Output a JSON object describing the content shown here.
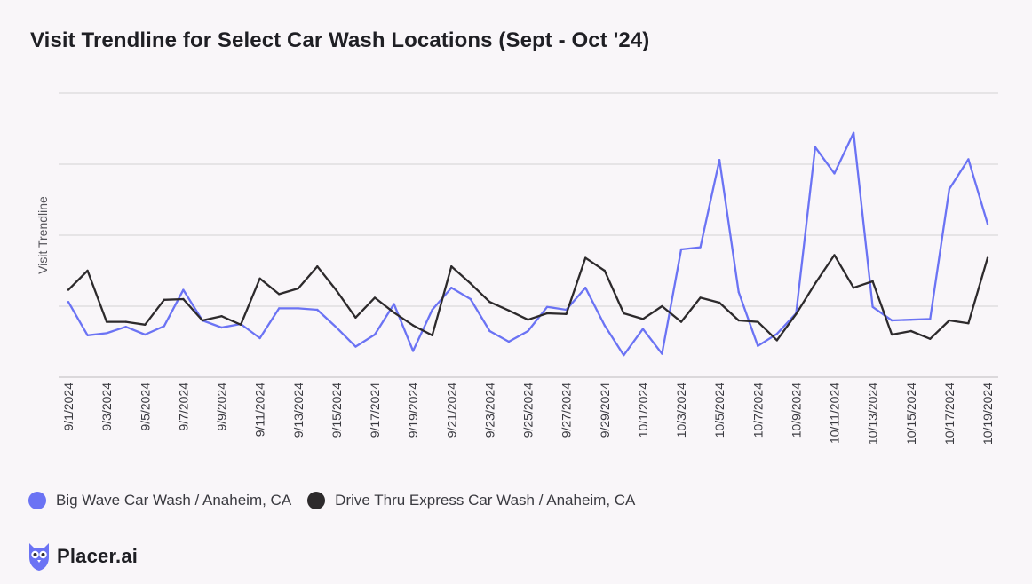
{
  "colors": {
    "background": "#f9f6f9",
    "big_wave": "#6b73f4",
    "drive_thru": "#2d2a2c",
    "grid": "#d4d2d4",
    "brand": "#6b73f4"
  },
  "brand": {
    "name": "Placer.ai",
    "icon": "owl-logo-icon"
  },
  "chart_data": {
    "type": "line",
    "title": "Visit Trendline for Select Car Wash Locations (Sept - Oct '24)",
    "ylabel": "Visit Trendline",
    "xlabel": "",
    "ylim": [
      0,
      4
    ],
    "yticks_labeled": false,
    "grid": true,
    "legend_position": "bottom-left",
    "x": [
      "9/1/2024",
      "9/2/2024",
      "9/3/2024",
      "9/4/2024",
      "9/5/2024",
      "9/6/2024",
      "9/7/2024",
      "9/8/2024",
      "9/9/2024",
      "9/10/2024",
      "9/11/2024",
      "9/12/2024",
      "9/13/2024",
      "9/14/2024",
      "9/15/2024",
      "9/16/2024",
      "9/17/2024",
      "9/18/2024",
      "9/19/2024",
      "9/20/2024",
      "9/21/2024",
      "9/22/2024",
      "9/23/2024",
      "9/24/2024",
      "9/25/2024",
      "9/26/2024",
      "9/27/2024",
      "9/28/2024",
      "9/29/2024",
      "9/30/2024",
      "10/1/2024",
      "10/2/2024",
      "10/3/2024",
      "10/4/2024",
      "10/5/2024",
      "10/6/2024",
      "10/7/2024",
      "10/8/2024",
      "10/9/2024",
      "10/10/2024",
      "10/11/2024",
      "10/12/2024",
      "10/13/2024",
      "10/14/2024",
      "10/15/2024",
      "10/16/2024",
      "10/17/2024",
      "10/18/2024",
      "10/19/2024"
    ],
    "tick_labels": [
      "9/1/2024",
      "9/3/2024",
      "9/5/2024",
      "9/7/2024",
      "9/9/2024",
      "9/11/2024",
      "9/13/2024",
      "9/15/2024",
      "9/17/2024",
      "9/19/2024",
      "9/21/2024",
      "9/23/2024",
      "9/25/2024",
      "9/27/2024",
      "9/29/2024",
      "10/1/2024",
      "10/3/2024",
      "10/5/2024",
      "10/7/2024",
      "10/9/2024",
      "10/11/2024",
      "10/13/2024",
      "10/15/2024",
      "10/17/2024",
      "10/19/2024"
    ],
    "series": [
      {
        "name": "Big Wave Car Wash / Anaheim, CA",
        "color": "#6b73f4",
        "values": [
          1.06,
          0.59,
          0.62,
          0.71,
          0.6,
          0.72,
          1.23,
          0.8,
          0.7,
          0.75,
          0.55,
          0.97,
          0.97,
          0.95,
          0.7,
          0.43,
          0.6,
          1.03,
          0.37,
          0.95,
          1.26,
          1.1,
          0.65,
          0.5,
          0.65,
          0.99,
          0.95,
          1.26,
          0.73,
          0.31,
          0.68,
          0.33,
          1.8,
          1.83,
          3.06,
          1.2,
          0.44,
          0.61,
          0.9,
          3.24,
          2.87,
          3.44,
          0.99,
          0.8,
          0.81,
          0.82,
          2.65,
          3.07,
          2.16
        ]
      },
      {
        "name": "Drive Thru Express Car Wash / Anaheim, CA",
        "color": "#2d2a2c",
        "values": [
          1.23,
          1.5,
          0.78,
          0.78,
          0.74,
          1.09,
          1.1,
          0.8,
          0.86,
          0.74,
          1.39,
          1.17,
          1.25,
          1.56,
          1.22,
          0.84,
          1.12,
          0.91,
          0.73,
          0.59,
          1.56,
          1.32,
          1.06,
          0.94,
          0.81,
          0.9,
          0.89,
          1.68,
          1.5,
          0.9,
          0.82,
          1.0,
          0.78,
          1.12,
          1.05,
          0.8,
          0.78,
          0.52,
          0.89,
          1.32,
          1.72,
          1.26,
          1.35,
          0.6,
          0.65,
          0.54,
          0.8,
          0.76,
          1.68
        ]
      }
    ]
  }
}
